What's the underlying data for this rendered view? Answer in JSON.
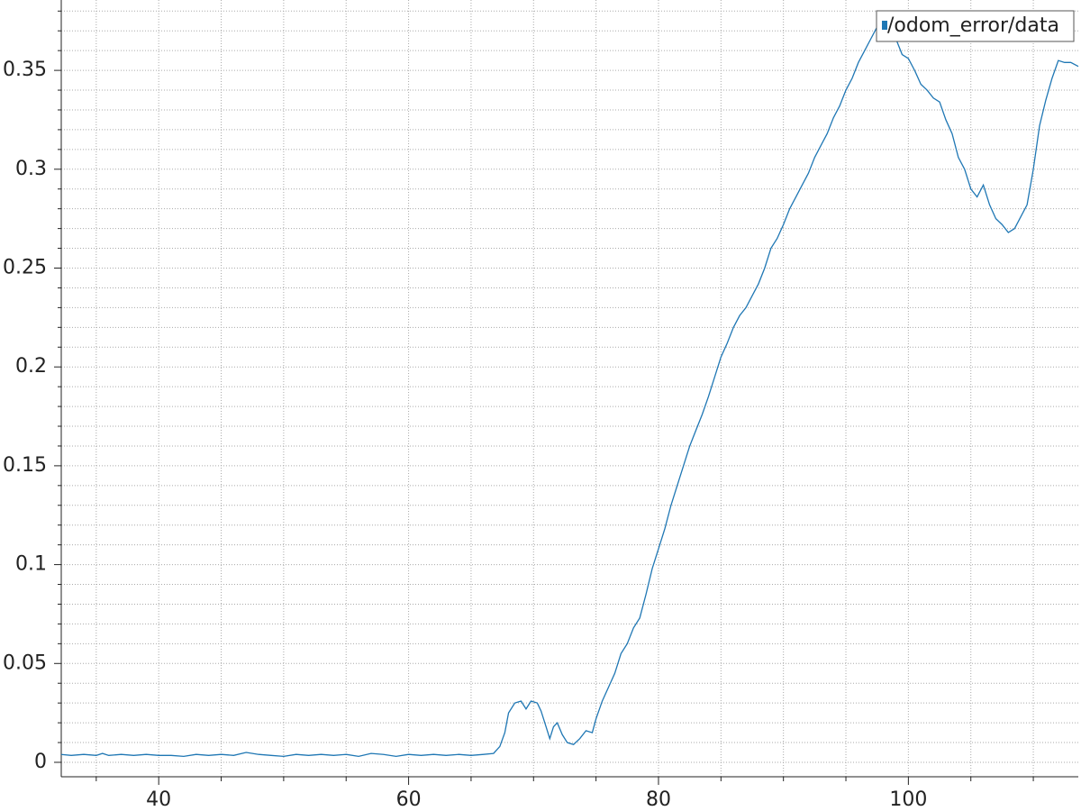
{
  "chart_data": {
    "type": "line",
    "xlim": [
      32.2,
      113.6
    ],
    "ylim": [
      -0.0073,
      0.3856
    ],
    "xticks": [
      40,
      60,
      80,
      100
    ],
    "yticks": [
      0,
      0.05,
      0.1,
      0.15,
      0.2,
      0.25,
      0.3,
      0.35
    ],
    "xminorticks": [
      35,
      45,
      50,
      55,
      65,
      70,
      75,
      85,
      90,
      95,
      105,
      110
    ],
    "yminorticks": [
      0.01,
      0.02,
      0.03,
      0.04,
      0.06,
      0.07,
      0.08,
      0.09,
      0.11,
      0.12,
      0.13,
      0.14,
      0.16,
      0.17,
      0.18,
      0.19,
      0.21,
      0.22,
      0.23,
      0.24,
      0.26,
      0.27,
      0.28,
      0.29,
      0.31,
      0.32,
      0.33,
      0.34,
      0.36,
      0.37,
      0.38
    ],
    "grid": true,
    "legend": "upper right",
    "series": [
      {
        "name": "/odom_error/data",
        "color": "#1f77b4",
        "x": [
          32.2,
          33,
          34,
          35,
          35.5,
          36,
          37,
          38,
          39,
          40,
          41,
          42,
          43,
          44,
          45,
          46,
          47,
          48,
          49,
          50,
          51,
          52,
          53,
          54,
          55,
          56,
          57,
          58,
          59,
          60,
          61,
          62,
          63,
          64,
          65,
          66,
          66.8,
          67.3,
          67.7,
          68,
          68.5,
          69,
          69.4,
          69.8,
          70.3,
          70.6,
          71,
          71.3,
          71.6,
          71.9,
          72.3,
          72.7,
          73.2,
          73.7,
          74.2,
          74.7,
          75,
          75.5,
          76,
          76.5,
          77,
          77.5,
          78,
          78.5,
          79,
          79.5,
          80,
          80.5,
          81,
          81.5,
          82,
          82.5,
          83,
          83.5,
          84,
          84.5,
          85,
          85.5,
          86,
          86.5,
          87,
          87.5,
          88,
          88.5,
          89,
          89.5,
          90,
          90.5,
          91,
          91.5,
          92,
          92.5,
          93,
          93.5,
          94,
          94.5,
          95,
          95.5,
          96,
          96.5,
          97,
          97.5,
          98,
          98.5,
          99,
          99.5,
          100,
          100.5,
          101,
          101.5,
          102,
          102.5,
          103,
          103.5,
          104,
          104.5,
          105,
          105.5,
          106,
          106.5,
          107,
          107.5,
          108,
          108.5,
          109,
          109.5,
          110,
          110.5,
          111,
          111.5,
          112,
          112.5,
          113,
          113.6
        ],
        "values": [
          0.004,
          0.0035,
          0.004,
          0.0035,
          0.0045,
          0.0035,
          0.004,
          0.0035,
          0.004,
          0.0035,
          0.0035,
          0.003,
          0.004,
          0.0035,
          0.004,
          0.0035,
          0.005,
          0.004,
          0.0035,
          0.003,
          0.004,
          0.0035,
          0.004,
          0.0035,
          0.004,
          0.003,
          0.0045,
          0.004,
          0.003,
          0.004,
          0.0035,
          0.004,
          0.0035,
          0.004,
          0.0035,
          0.004,
          0.0045,
          0.008,
          0.015,
          0.025,
          0.03,
          0.031,
          0.027,
          0.031,
          0.03,
          0.026,
          0.018,
          0.012,
          0.018,
          0.02,
          0.014,
          0.01,
          0.009,
          0.012,
          0.016,
          0.015,
          0.022,
          0.031,
          0.038,
          0.045,
          0.055,
          0.06,
          0.068,
          0.073,
          0.085,
          0.098,
          0.108,
          0.118,
          0.13,
          0.14,
          0.15,
          0.16,
          0.168,
          0.176,
          0.185,
          0.195,
          0.205,
          0.212,
          0.22,
          0.226,
          0.23,
          0.236,
          0.242,
          0.25,
          0.26,
          0.265,
          0.272,
          0.28,
          0.286,
          0.292,
          0.298,
          0.306,
          0.312,
          0.318,
          0.326,
          0.332,
          0.34,
          0.346,
          0.354,
          0.36,
          0.366,
          0.372,
          0.37,
          0.366,
          0.366,
          0.358,
          0.356,
          0.35,
          0.343,
          0.34,
          0.336,
          0.334,
          0.325,
          0.318,
          0.306,
          0.3,
          0.29,
          0.286,
          0.292,
          0.282,
          0.275,
          0.272,
          0.268,
          0.27,
          0.276,
          0.282,
          0.3,
          0.322,
          0.335,
          0.346,
          0.355,
          0.354,
          0.354,
          0.352
        ]
      }
    ]
  }
}
